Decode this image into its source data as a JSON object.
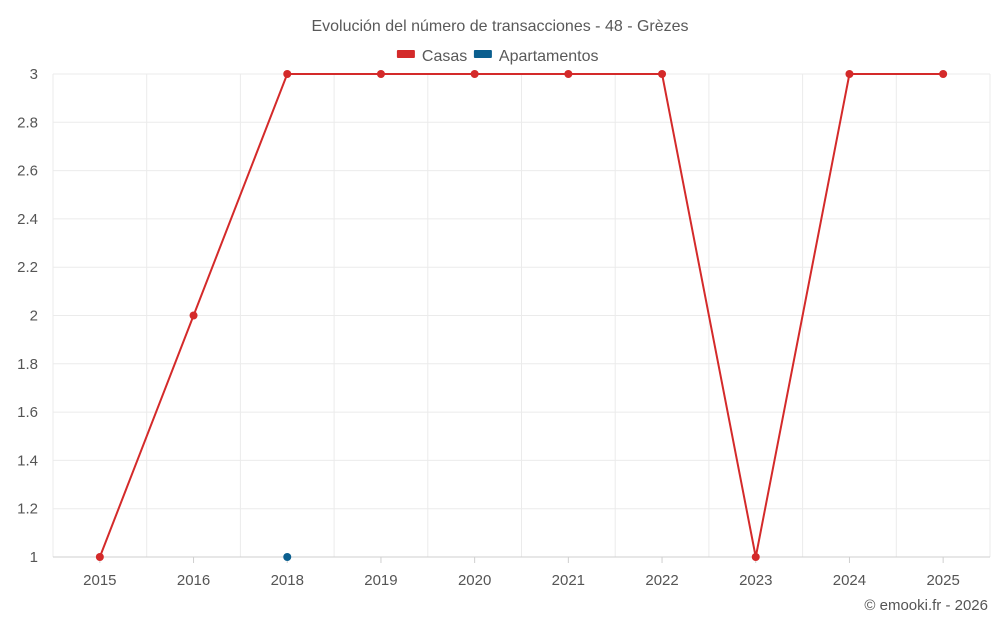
{
  "chart_data": {
    "type": "line",
    "title": "Evolución del número de transacciones - 48 - Grèzes",
    "x": [
      "2015",
      "2016",
      "2018",
      "2019",
      "2020",
      "2021",
      "2022",
      "2023",
      "2024",
      "2025"
    ],
    "ylim": [
      1,
      3
    ],
    "yticks": [
      "1",
      "1.2",
      "1.4",
      "1.6",
      "1.8",
      "2",
      "2.2",
      "2.4",
      "2.6",
      "2.8",
      "3"
    ],
    "grid": true,
    "legend_position": "top-center",
    "series": [
      {
        "name": "Casas",
        "color": "#d42a2a",
        "values": [
          1,
          2,
          3,
          3,
          3,
          3,
          3,
          1,
          3,
          3
        ]
      },
      {
        "name": "Apartamentos",
        "color": "#0b5f8f",
        "values": [
          null,
          null,
          1,
          null,
          null,
          null,
          null,
          null,
          null,
          null
        ]
      }
    ]
  },
  "credit": "© emooki.fr - 2026"
}
